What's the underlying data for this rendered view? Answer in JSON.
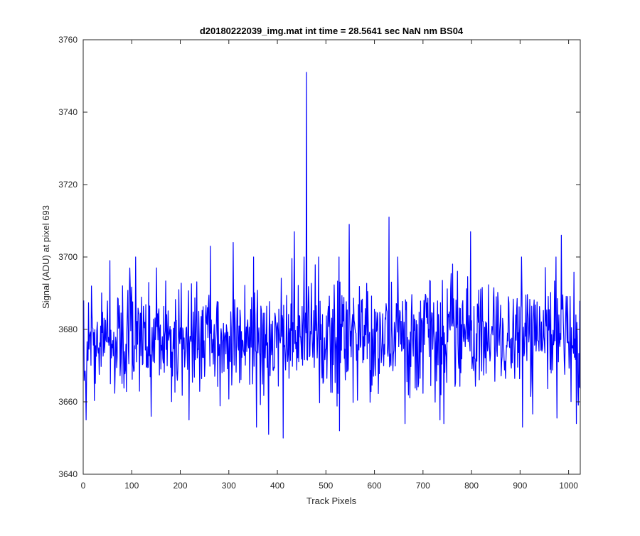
{
  "chart_data": {
    "type": "line",
    "title": "d20180222039_img.mat int time = 28.5641 sec  NaN nm BS04",
    "xlabel": "Track Pixels",
    "ylabel": "Signal (ADU) at pixel 693",
    "xlim": [
      0,
      1024
    ],
    "ylim": [
      3640,
      3760
    ],
    "xticks": [
      0,
      100,
      200,
      300,
      400,
      500,
      600,
      700,
      800,
      900,
      1000
    ],
    "yticks": [
      3640,
      3660,
      3680,
      3700,
      3720,
      3740,
      3760
    ],
    "grid": false,
    "series": [
      {
        "color": "#0000ff",
        "noise_description": "1024 samples of noise around mean 3678 (std approx. 8 ADU)",
        "x": [
          1,
          55,
          108,
          140,
          151,
          262,
          309,
          357,
          382,
          412,
          435,
          455,
          460,
          528,
          548,
          630,
          663,
          743,
          798,
          905,
          985,
          1016
        ],
        "y": [
          3688,
          3699,
          3700,
          3656,
          3697,
          3703,
          3704,
          3653,
          3651,
          3650,
          3707,
          3700,
          3751,
          3652,
          3709,
          3711,
          3654,
          3654,
          3707,
          3653,
          3706,
          3654
        ],
        "mean": 3678,
        "count": 1024
      }
    ]
  }
}
